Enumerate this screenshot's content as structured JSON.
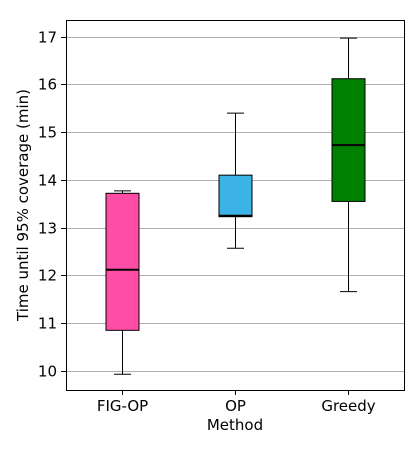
{
  "chart_data": {
    "type": "box",
    "xlabel": "Method",
    "ylabel": "Time until 95% coverage (min)",
    "ylim": [
      9.6,
      17.35
    ],
    "yticks": [
      10,
      11,
      12,
      13,
      14,
      15,
      16,
      17
    ],
    "grid": "horizontal",
    "categories": [
      "FIG-OP",
      "OP",
      "Greedy"
    ],
    "boxes": [
      {
        "category": "FIG-OP",
        "whisker_low": 9.93,
        "q1": 10.85,
        "median": 12.12,
        "q3": 13.72,
        "whisker_high": 13.77,
        "color": "#ff4da6"
      },
      {
        "category": "OP",
        "whisker_low": 12.57,
        "q1": 13.23,
        "median": 13.25,
        "q3": 14.1,
        "whisker_high": 15.4,
        "color": "#3bb3e6"
      },
      {
        "category": "Greedy",
        "whisker_low": 11.66,
        "q1": 13.55,
        "median": 14.73,
        "q3": 16.12,
        "whisker_high": 16.97,
        "color": "#008000"
      }
    ]
  }
}
